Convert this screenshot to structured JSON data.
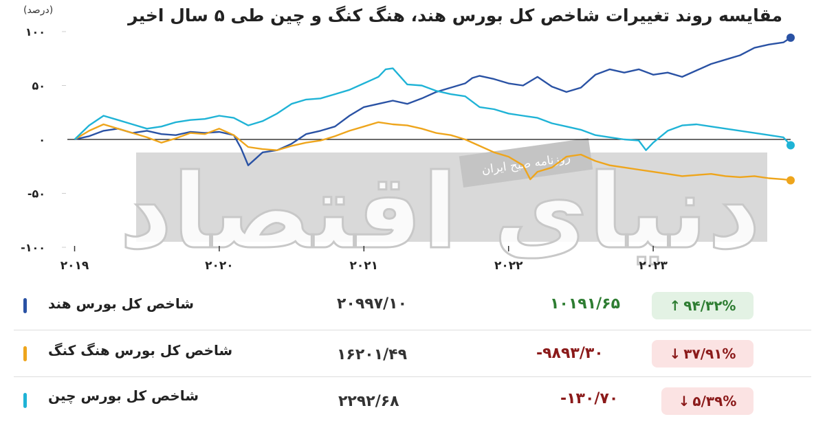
{
  "header": {
    "title": "مقایسه روند تغییرات شاخص کل بورس هند، هنگ کنگ و چین طی ۵ سال اخیر",
    "unit": "(درصد)"
  },
  "watermark": {
    "logo_text": "دنیای اقتصاد",
    "caption": "روزنامه صبح ایران"
  },
  "colors": {
    "india": "#2a52a4",
    "hongkong": "#eea51c",
    "china": "#1fb3d6",
    "positive": "#2e7d32",
    "negative": "#8b1a1a",
    "positive_badge_bg": "#e3f2e4",
    "negative_badge_bg": "#fbe3e3"
  },
  "chart_data": {
    "type": "line",
    "title": "مقایسه روند تغییرات شاخص کل بورس هند، هنگ کنگ و چین طی ۵ سال اخیر",
    "ylabel": "(درصد)",
    "xlabel": "",
    "ylim": [
      -100,
      100
    ],
    "yticks": [
      "۱۰۰",
      "۵۰",
      "۰",
      "-۵۰",
      "-۱۰۰"
    ],
    "ytick_values": [
      100,
      50,
      0,
      -50,
      -100
    ],
    "xticks": [
      "۲۰۱۹",
      "۲۰۲۰",
      "۲۰۲۱",
      "۲۰۲۲",
      "۲۰۲۳"
    ],
    "xtick_values": [
      2019,
      2020,
      2021,
      2022,
      2023
    ],
    "xlim": [
      2018.95,
      2023.95
    ],
    "grid": false,
    "series": [
      {
        "name": "شاخص کل بورس هند",
        "color_key": "india",
        "points": [
          [
            2019.0,
            0
          ],
          [
            2019.1,
            3
          ],
          [
            2019.2,
            8
          ],
          [
            2019.3,
            10
          ],
          [
            2019.4,
            6
          ],
          [
            2019.5,
            8
          ],
          [
            2019.6,
            5
          ],
          [
            2019.7,
            4
          ],
          [
            2019.8,
            7
          ],
          [
            2019.9,
            6
          ],
          [
            2020.0,
            7
          ],
          [
            2020.1,
            4
          ],
          [
            2020.15,
            -8
          ],
          [
            2020.2,
            -24
          ],
          [
            2020.25,
            -18
          ],
          [
            2020.3,
            -12
          ],
          [
            2020.4,
            -10
          ],
          [
            2020.5,
            -4
          ],
          [
            2020.6,
            5
          ],
          [
            2020.7,
            8
          ],
          [
            2020.8,
            12
          ],
          [
            2020.9,
            22
          ],
          [
            2021.0,
            30
          ],
          [
            2021.1,
            33
          ],
          [
            2021.2,
            36
          ],
          [
            2021.3,
            33
          ],
          [
            2021.4,
            38
          ],
          [
            2021.5,
            44
          ],
          [
            2021.6,
            48
          ],
          [
            2021.7,
            52
          ],
          [
            2021.75,
            57
          ],
          [
            2021.8,
            59
          ],
          [
            2021.9,
            56
          ],
          [
            2022.0,
            52
          ],
          [
            2022.1,
            50
          ],
          [
            2022.2,
            58
          ],
          [
            2022.3,
            49
          ],
          [
            2022.4,
            44
          ],
          [
            2022.5,
            48
          ],
          [
            2022.6,
            60
          ],
          [
            2022.7,
            65
          ],
          [
            2022.8,
            62
          ],
          [
            2022.9,
            65
          ],
          [
            2023.0,
            60
          ],
          [
            2023.1,
            62
          ],
          [
            2023.2,
            58
          ],
          [
            2023.3,
            64
          ],
          [
            2023.4,
            70
          ],
          [
            2023.5,
            74
          ],
          [
            2023.6,
            78
          ],
          [
            2023.7,
            85
          ],
          [
            2023.8,
            88
          ],
          [
            2023.9,
            90
          ],
          [
            2023.95,
            94.32
          ]
        ]
      },
      {
        "name": "شاخص کل بورس هنگ کنگ",
        "color_key": "hongkong",
        "points": [
          [
            2019.0,
            0
          ],
          [
            2019.1,
            8
          ],
          [
            2019.2,
            14
          ],
          [
            2019.3,
            10
          ],
          [
            2019.4,
            6
          ],
          [
            2019.5,
            2
          ],
          [
            2019.6,
            -3
          ],
          [
            2019.7,
            1
          ],
          [
            2019.8,
            6
          ],
          [
            2019.9,
            5
          ],
          [
            2020.0,
            10
          ],
          [
            2020.1,
            4
          ],
          [
            2020.2,
            -7
          ],
          [
            2020.3,
            -9
          ],
          [
            2020.4,
            -10
          ],
          [
            2020.5,
            -6
          ],
          [
            2020.6,
            -3
          ],
          [
            2020.7,
            -1
          ],
          [
            2020.8,
            3
          ],
          [
            2020.9,
            8
          ],
          [
            2021.0,
            12
          ],
          [
            2021.1,
            16
          ],
          [
            2021.2,
            14
          ],
          [
            2021.3,
            13
          ],
          [
            2021.4,
            10
          ],
          [
            2021.5,
            6
          ],
          [
            2021.6,
            4
          ],
          [
            2021.7,
            0
          ],
          [
            2021.8,
            -6
          ],
          [
            2021.9,
            -12
          ],
          [
            2022.0,
            -16
          ],
          [
            2022.1,
            -24
          ],
          [
            2022.15,
            -37
          ],
          [
            2022.2,
            -30
          ],
          [
            2022.3,
            -26
          ],
          [
            2022.4,
            -16
          ],
          [
            2022.5,
            -14
          ],
          [
            2022.6,
            -20
          ],
          [
            2022.7,
            -24
          ],
          [
            2022.8,
            -26
          ],
          [
            2022.9,
            -28
          ],
          [
            2023.0,
            -30
          ],
          [
            2023.1,
            -32
          ],
          [
            2023.2,
            -34
          ],
          [
            2023.3,
            -33
          ],
          [
            2023.4,
            -32
          ],
          [
            2023.5,
            -34
          ],
          [
            2023.6,
            -35
          ],
          [
            2023.7,
            -34
          ],
          [
            2023.8,
            -36
          ],
          [
            2023.9,
            -37
          ],
          [
            2023.95,
            -37.91
          ]
        ]
      },
      {
        "name": "شاخص کل بورس چین",
        "color_key": "china",
        "points": [
          [
            2019.0,
            0
          ],
          [
            2019.1,
            13
          ],
          [
            2019.2,
            22
          ],
          [
            2019.3,
            18
          ],
          [
            2019.4,
            14
          ],
          [
            2019.5,
            10
          ],
          [
            2019.6,
            12
          ],
          [
            2019.7,
            16
          ],
          [
            2019.8,
            18
          ],
          [
            2019.9,
            19
          ],
          [
            2020.0,
            22
          ],
          [
            2020.1,
            20
          ],
          [
            2020.2,
            13
          ],
          [
            2020.3,
            17
          ],
          [
            2020.4,
            24
          ],
          [
            2020.5,
            33
          ],
          [
            2020.6,
            37
          ],
          [
            2020.7,
            38
          ],
          [
            2020.8,
            42
          ],
          [
            2020.9,
            46
          ],
          [
            2021.0,
            52
          ],
          [
            2021.05,
            55
          ],
          [
            2021.1,
            58
          ],
          [
            2021.15,
            65
          ],
          [
            2021.2,
            66
          ],
          [
            2021.3,
            51
          ],
          [
            2021.4,
            50
          ],
          [
            2021.5,
            45
          ],
          [
            2021.6,
            42
          ],
          [
            2021.7,
            40
          ],
          [
            2021.8,
            30
          ],
          [
            2021.9,
            28
          ],
          [
            2022.0,
            24
          ],
          [
            2022.1,
            22
          ],
          [
            2022.2,
            20
          ],
          [
            2022.3,
            15
          ],
          [
            2022.4,
            12
          ],
          [
            2022.5,
            9
          ],
          [
            2022.6,
            4
          ],
          [
            2022.7,
            2
          ],
          [
            2022.8,
            0
          ],
          [
            2022.9,
            -1
          ],
          [
            2022.95,
            -10
          ],
          [
            2023.0,
            -3
          ],
          [
            2023.1,
            8
          ],
          [
            2023.2,
            13
          ],
          [
            2023.3,
            14
          ],
          [
            2023.4,
            12
          ],
          [
            2023.5,
            10
          ],
          [
            2023.6,
            8
          ],
          [
            2023.7,
            6
          ],
          [
            2023.8,
            4
          ],
          [
            2023.9,
            2
          ],
          [
            2023.95,
            -5.39
          ]
        ]
      }
    ]
  },
  "table": {
    "rows": [
      {
        "name": "شاخص کل بورس هند",
        "color_key": "india",
        "price": "۲۰۹۹۷/۱۰",
        "change": "۱۰۱۹۱/۶۵",
        "pct": "۹۴/۳۲%",
        "direction": "up",
        "arrow": "↑"
      },
      {
        "name": "شاخص کل بورس هنگ کنگ",
        "color_key": "hongkong",
        "price": "۱۶۲۰۱/۴۹",
        "change": "-۹۸۹۳/۳۰",
        "pct": "۳۷/۹۱%",
        "direction": "down",
        "arrow": "↓"
      },
      {
        "name": "شاخص کل بورس چین",
        "color_key": "china",
        "price": "۲۲۹۲/۶۸",
        "change": "-۱۳۰/۷۰",
        "pct": "۵/۳۹%",
        "direction": "down",
        "arrow": "↓"
      }
    ]
  }
}
